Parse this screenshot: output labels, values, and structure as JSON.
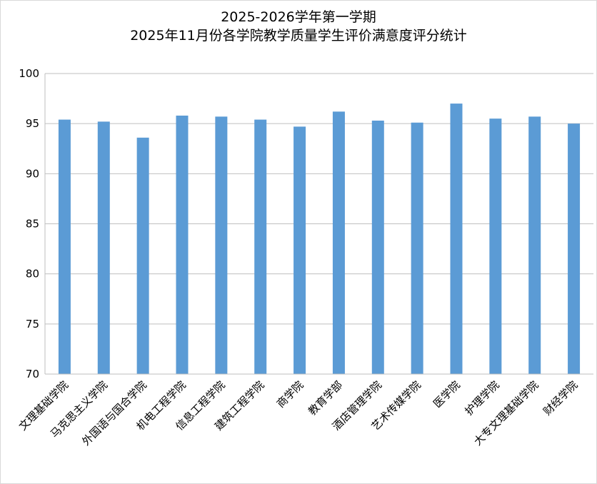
{
  "chart_data": {
    "type": "bar",
    "title": "2025-2026学年第一学期",
    "subtitle": "2025年11月份各学院教学质量学生评价满意度评分统计",
    "xlabel": "",
    "ylabel": "",
    "ylim": [
      70,
      100
    ],
    "yticks": [
      "70",
      "75",
      "80",
      "85",
      "90",
      "95",
      "100"
    ],
    "grid": true,
    "legend": "none",
    "bar_color": "#5b9bd5",
    "grid_color": "#bfbfbf",
    "categories": [
      "文理基础学院",
      "马克思主义学院",
      "外国语与国合学院",
      "机电工程学院",
      "信息工程学院",
      "建筑工程学院",
      "商学院",
      "教育学部",
      "酒店管理学院",
      "艺术传媒学院",
      "医学院",
      "护理学院",
      "大专文理基础学院",
      "财经学院"
    ],
    "values": [
      95.4,
      95.2,
      93.6,
      95.8,
      95.7,
      95.4,
      94.7,
      96.2,
      95.3,
      95.1,
      97.0,
      95.5,
      95.7,
      95.0
    ]
  }
}
